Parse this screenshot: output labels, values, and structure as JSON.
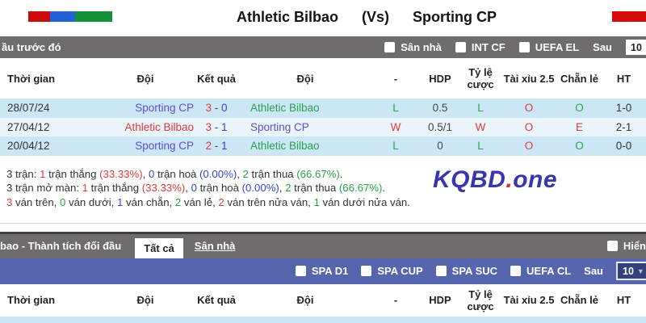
{
  "header": {
    "title_home": "Athletic Bilbao",
    "title_vs": "(Vs)",
    "title_away": "Sporting CP"
  },
  "colors": {
    "bar_gray": "#6e6c6d",
    "bar_blue": "#5566ae",
    "row_blue": "#cbe6f4",
    "row_light": "#e9f5fb",
    "win_red": "#e03a3a",
    "loss_green": "#2ba14a",
    "score_blue": "#3644d9",
    "team_purple": "#5b50d4",
    "watermark_blue": "#3a35ae"
  },
  "section1": {
    "bar_title": "ầu trước đó",
    "filters": [
      {
        "label": "Sân nhà",
        "checked": false
      },
      {
        "label": "INT CF",
        "checked": false
      },
      {
        "label": "UEFA EL",
        "checked": false
      }
    ],
    "after_label": "Sau",
    "after_value": "10"
  },
  "h2h": {
    "headers": [
      "Thời gian",
      "Đội",
      "Kết quả",
      "Đội",
      "-",
      "HDP",
      "Tỷ lệ cược",
      "Tài xỉu 2.5",
      "Chẵn lẻ",
      "HT"
    ],
    "rows": [
      {
        "date": "28/07/24",
        "home": "Sporting CP",
        "home_color": "purple",
        "score_home": "3",
        "score_away": "0",
        "away": "Athletic Bilbao",
        "away_color": "green",
        "result": "L",
        "result_color": "green",
        "hdp": "0.5",
        "odds": "L",
        "odds_color": "green",
        "over_under": "O",
        "over_under_color": "red",
        "odd_even": "O",
        "odd_even_color": "green",
        "ht": "1-0"
      },
      {
        "date": "27/04/12",
        "home": "Athletic Bilbao",
        "home_color": "red",
        "score_home": "3",
        "score_away": "1",
        "away": "Sporting CP",
        "away_color": "purple",
        "result": "W",
        "result_color": "red",
        "hdp": "0.5/1",
        "odds": "W",
        "odds_color": "red",
        "over_under": "O",
        "over_under_color": "red",
        "odd_even": "E",
        "odd_even_color": "red",
        "ht": "2-1"
      },
      {
        "date": "20/04/12",
        "home": "Sporting CP",
        "home_color": "purple",
        "score_home": "2",
        "score_away": "1",
        "away": "Athletic Bilbao",
        "away_color": "green",
        "result": "L",
        "result_color": "green",
        "hdp": "0",
        "odds": "L",
        "odds_color": "green",
        "over_under": "O",
        "over_under_color": "red",
        "odd_even": "O",
        "odd_even_color": "green",
        "ht": "0-0"
      }
    ]
  },
  "summary": {
    "line1": [
      {
        "t": "3 trận: ",
        "c": "dark"
      },
      {
        "t": "1",
        "c": "red"
      },
      {
        "t": " trận thắng ",
        "c": "dark"
      },
      {
        "t": "(33.33%)",
        "c": "red"
      },
      {
        "t": ", ",
        "c": "dark"
      },
      {
        "t": "0",
        "c": "blue"
      },
      {
        "t": " trận hoà ",
        "c": "dark"
      },
      {
        "t": "(0.00%)",
        "c": "blue"
      },
      {
        "t": ", ",
        "c": "dark"
      },
      {
        "t": "2",
        "c": "green"
      },
      {
        "t": " trận thua ",
        "c": "dark"
      },
      {
        "t": "(66.67%)",
        "c": "green"
      },
      {
        "t": ".",
        "c": "dark"
      }
    ],
    "line2": [
      {
        "t": "3 trận mở màn: ",
        "c": "dark"
      },
      {
        "t": "1",
        "c": "red"
      },
      {
        "t": " trận thắng ",
        "c": "dark"
      },
      {
        "t": "(33.33%)",
        "c": "red"
      },
      {
        "t": ", ",
        "c": "dark"
      },
      {
        "t": "0",
        "c": "blue"
      },
      {
        "t": " trận hoà ",
        "c": "dark"
      },
      {
        "t": "(0.00%)",
        "c": "blue"
      },
      {
        "t": ", ",
        "c": "dark"
      },
      {
        "t": "2",
        "c": "green"
      },
      {
        "t": " trận thua ",
        "c": "dark"
      },
      {
        "t": "(66.67%)",
        "c": "green"
      },
      {
        "t": ".",
        "c": "dark"
      }
    ],
    "line3": [
      {
        "t": "3",
        "c": "red"
      },
      {
        "t": " ván trên, ",
        "c": "dark"
      },
      {
        "t": "0",
        "c": "green"
      },
      {
        "t": " ván dưới, ",
        "c": "dark"
      },
      {
        "t": "1",
        "c": "blue"
      },
      {
        "t": " ván chẵn, ",
        "c": "dark"
      },
      {
        "t": "2",
        "c": "green"
      },
      {
        "t": " ván lẻ, ",
        "c": "dark"
      },
      {
        "t": "2",
        "c": "red"
      },
      {
        "t": " ván trên nửa ván, ",
        "c": "dark"
      },
      {
        "t": "1",
        "c": "green"
      },
      {
        "t": " ván dưới nửa ván.",
        "c": "dark"
      }
    ]
  },
  "watermark": {
    "brand": "KQBD",
    "dot": ".",
    "tld": "one"
  },
  "section2": {
    "bar_title": "bao - Thành tích đối đầu",
    "tabs": [
      {
        "label": "Tất cả",
        "active": true
      },
      {
        "label": "Sân nhà",
        "active": false
      }
    ],
    "show_label": "Hiển",
    "filters": [
      {
        "label": "SPA D1",
        "checked": false
      },
      {
        "label": "SPA CUP",
        "checked": false
      },
      {
        "label": "SPA SUC",
        "checked": false
      },
      {
        "label": "UEFA CL",
        "checked": false
      }
    ],
    "after_label": "Sau",
    "after_value": "10"
  }
}
